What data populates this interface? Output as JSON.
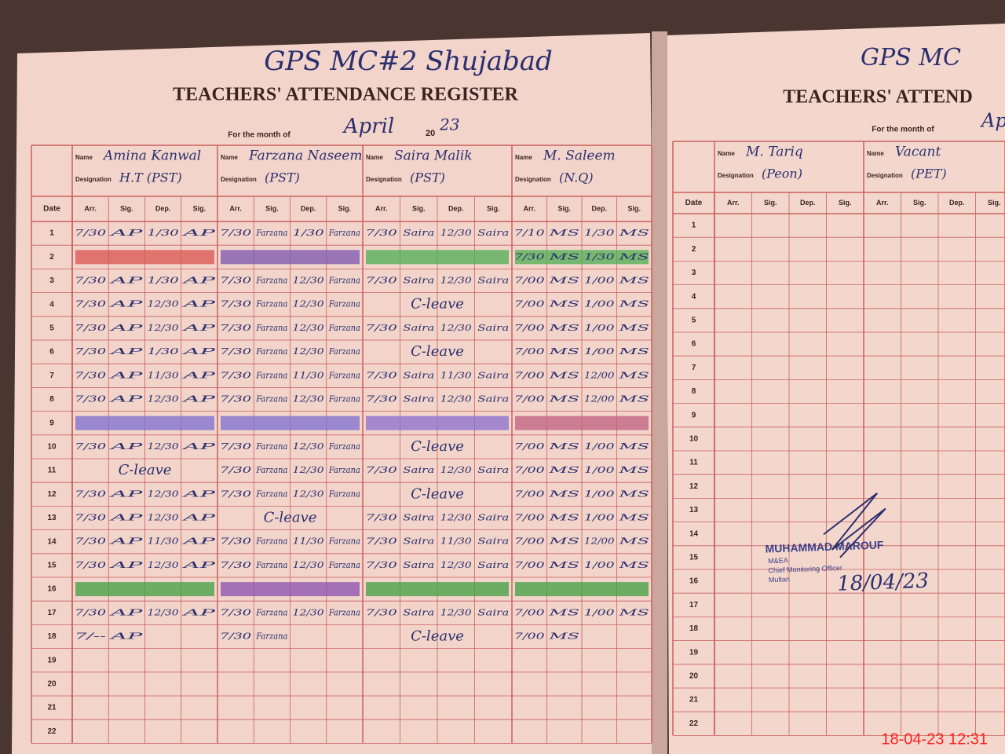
{
  "left_page": {
    "header_note": "GPS MC#2 Shujabad",
    "title": "TEACHERS' ATTENDANCE REGISTER",
    "month_label": "For the month of",
    "month": "April",
    "year_prefix": "20",
    "year": "23",
    "name_label": "Name",
    "designation_label": "Designation",
    "columns": {
      "date": "Date",
      "arr": "Arr.",
      "sig": "Sig.",
      "dep": "Dep."
    },
    "teachers": [
      {
        "name": "Amina Kanwal",
        "designation": "H.T (PST)"
      },
      {
        "name": "Farzana Naseem",
        "designation": "(PST)"
      },
      {
        "name": "Saira Malik",
        "designation": "(PST)"
      },
      {
        "name": "M. Saleem",
        "designation": "(N.Q)"
      }
    ],
    "rows": [
      {
        "date": "1",
        "entries": [
          [
            "7/30",
            "AP",
            "1/30",
            "AP"
          ],
          [
            "7/30",
            "Farzana",
            "1/30",
            "Farzana"
          ],
          [
            "7/30",
            "Saira",
            "12/30",
            "Saira"
          ],
          [
            "7/10",
            "MS",
            "1/30",
            "MS"
          ]
        ]
      },
      {
        "date": "2",
        "entries": [
          null,
          null,
          null,
          [
            "7/30",
            "MS",
            "1/30",
            "MS"
          ]
        ]
      },
      {
        "date": "3",
        "entries": [
          [
            "7/30",
            "AP",
            "1/30",
            "AP"
          ],
          [
            "7/30",
            "Farzana",
            "12/30",
            "Farzana"
          ],
          [
            "7/30",
            "Saira",
            "12/30",
            "Saira"
          ],
          [
            "7/00",
            "MS",
            "1/00",
            "MS"
          ]
        ]
      },
      {
        "date": "4",
        "entries": [
          [
            "7/30",
            "AP",
            "12/30",
            "AP"
          ],
          [
            "7/30",
            "Farzana",
            "12/30",
            "Farzana"
          ],
          "C-leave",
          [
            "7/00",
            "MS",
            "1/00",
            "MS"
          ]
        ]
      },
      {
        "date": "5",
        "entries": [
          [
            "7/30",
            "AP",
            "12/30",
            "AP"
          ],
          [
            "7/30",
            "Farzana",
            "12/30",
            "Farzana"
          ],
          [
            "7/30",
            "Saira",
            "12/30",
            "Saira"
          ],
          [
            "7/00",
            "MS",
            "1/00",
            "MS"
          ]
        ]
      },
      {
        "date": "6",
        "entries": [
          [
            "7/30",
            "AP",
            "1/30",
            "AP"
          ],
          [
            "7/30",
            "Farzana",
            "12/30",
            "Farzana"
          ],
          "C-leave",
          [
            "7/00",
            "MS",
            "1/00",
            "MS"
          ]
        ]
      },
      {
        "date": "7",
        "entries": [
          [
            "7/30",
            "AP",
            "11/30",
            "AP"
          ],
          [
            "7/30",
            "Farzana",
            "11/30",
            "Farzana"
          ],
          [
            "7/30",
            "Saira",
            "11/30",
            "Saira"
          ],
          [
            "7/00",
            "MS",
            "12/00",
            "MS"
          ]
        ]
      },
      {
        "date": "8",
        "entries": [
          [
            "7/30",
            "AP",
            "12/30",
            "AP"
          ],
          [
            "7/30",
            "Farzana",
            "12/30",
            "Farzana"
          ],
          [
            "7/30",
            "Saira",
            "12/30",
            "Saira"
          ],
          [
            "7/00",
            "MS",
            "12/00",
            "MS"
          ]
        ]
      },
      {
        "date": "9"
      },
      {
        "date": "10",
        "entries": [
          [
            "7/30",
            "AP",
            "12/30",
            "AP"
          ],
          [
            "7/30",
            "Farzana",
            "12/30",
            "Farzana"
          ],
          "C-leave",
          [
            "7/00",
            "MS",
            "1/00",
            "MS"
          ]
        ]
      },
      {
        "date": "11",
        "entries": [
          "C-leave",
          [
            "7/30",
            "Farzana",
            "12/30",
            "Farzana"
          ],
          [
            "7/30",
            "Saira",
            "12/30",
            "Saira"
          ],
          [
            "7/00",
            "MS",
            "1/00",
            "MS"
          ]
        ]
      },
      {
        "date": "12",
        "entries": [
          [
            "7/30",
            "AP",
            "12/30",
            "AP"
          ],
          [
            "7/30",
            "Farzana",
            "12/30",
            "Farzana"
          ],
          "C-leave",
          [
            "7/00",
            "MS",
            "1/00",
            "MS"
          ]
        ]
      },
      {
        "date": "13",
        "entries": [
          [
            "7/30",
            "AP",
            "12/30",
            "AP"
          ],
          "C-leave",
          [
            "7/30",
            "Saira",
            "12/30",
            "Saira"
          ],
          [
            "7/00",
            "MS",
            "1/00",
            "MS"
          ]
        ]
      },
      {
        "date": "14",
        "entries": [
          [
            "7/30",
            "AP",
            "11/30",
            "AP"
          ],
          [
            "7/30",
            "Farzana",
            "11/30",
            "Farzana"
          ],
          [
            "7/30",
            "Saira",
            "11/30",
            "Saira"
          ],
          [
            "7/00",
            "MS",
            "12/00",
            "MS"
          ]
        ]
      },
      {
        "date": "15",
        "entries": [
          [
            "7/30",
            "AP",
            "12/30",
            "AP"
          ],
          [
            "7/30",
            "Farzana",
            "12/30",
            "Farzana"
          ],
          [
            "7/30",
            "Saira",
            "12/30",
            "Saira"
          ],
          [
            "7/00",
            "MS",
            "1/00",
            "MS"
          ]
        ]
      },
      {
        "date": "16"
      },
      {
        "date": "17",
        "entries": [
          [
            "7/30",
            "AP",
            "12/30",
            "AP"
          ],
          [
            "7/30",
            "Farzana",
            "12/30",
            "Farzana"
          ],
          [
            "7/30",
            "Saira",
            "12/30",
            "Saira"
          ],
          [
            "7/00",
            "MS",
            "1/00",
            "MS"
          ]
        ]
      },
      {
        "date": "18",
        "entries": [
          [
            "7/--",
            "AP"
          ],
          [
            "7/30",
            "Farzana"
          ],
          "C-leave",
          [
            "7/00",
            "MS"
          ]
        ]
      },
      {
        "date": "19"
      },
      {
        "date": "20"
      },
      {
        "date": "21"
      },
      {
        "date": "22"
      }
    ]
  },
  "right_page": {
    "header_note": "GPS MC",
    "title": "TEACHERS' ATTEND",
    "month_label": "For the month of",
    "month": "Apr",
    "name_label": "Name",
    "designation_label": "Designation",
    "teachers": [
      {
        "name": "M. Tariq",
        "designation": "(Peon)"
      },
      {
        "name": "Vacant",
        "designation": "(PET)"
      }
    ],
    "dates": [
      "1",
      "2",
      "3",
      "4",
      "5",
      "6",
      "7",
      "8",
      "9",
      "10",
      "11",
      "12",
      "13",
      "14",
      "15",
      "16",
      "17",
      "18",
      "19",
      "20",
      "21",
      "22"
    ]
  },
  "stamp": {
    "name": "MUHAMMAD MAROUF",
    "role": "M&EA",
    "office": "Chief Monitoring Officer",
    "city": "Multan",
    "signature_date": "18/04/23"
  },
  "timestamp": "18-04-23 12:31"
}
